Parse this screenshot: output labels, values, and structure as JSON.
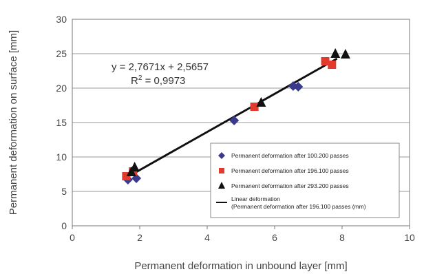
{
  "chart_data": {
    "type": "scatter",
    "xlabel": "Permanent deformation in unbound layer [mm]",
    "ylabel": "Permanent deformation on surface [mm]",
    "xlim": [
      0,
      10
    ],
    "ylim": [
      0,
      30
    ],
    "x_ticks": [
      "0",
      "2",
      "4",
      "6",
      "8",
      "10"
    ],
    "y_ticks": [
      "0",
      "5",
      "10",
      "15",
      "20",
      "25",
      "30"
    ],
    "grid": "horizontal",
    "legend_position": "bottom-right",
    "equation": "y = 2,7671x + 2,5657",
    "r2_prefix": "R",
    "r2_exponent": "2",
    "r2_suffix": " = 0,9973",
    "series": [
      {
        "name": "Permanent deformation after 100.200 passes",
        "marker": "diamond",
        "color": "#3a3a8c",
        "points": [
          [
            1.65,
            6.7
          ],
          [
            1.9,
            6.9
          ],
          [
            4.8,
            15.3
          ],
          [
            6.55,
            20.3
          ],
          [
            6.7,
            20.2
          ]
        ]
      },
      {
        "name": "Permanent deformation after 196.100 passes",
        "marker": "square",
        "color": "#e23b2e",
        "points": [
          [
            1.6,
            7.2
          ],
          [
            1.8,
            7.9
          ],
          [
            5.4,
            17.3
          ],
          [
            7.5,
            23.9
          ],
          [
            7.7,
            23.4
          ]
        ]
      },
      {
        "name": "Permanent deformation after 293.200 passes",
        "marker": "triangle",
        "color": "#111111",
        "points": [
          [
            1.75,
            7.8
          ],
          [
            1.85,
            8.5
          ],
          [
            5.6,
            17.9
          ],
          [
            7.8,
            25.0
          ],
          [
            8.1,
            24.9
          ]
        ]
      }
    ],
    "trendline": {
      "name_line1": "Linear deformation",
      "name_line2": "(Permanent deformation after 196.100 passes (mm)",
      "slope": 2.7671,
      "intercept": 2.5657,
      "x_range": [
        1.75,
        7.85
      ],
      "color": "#111111"
    }
  }
}
